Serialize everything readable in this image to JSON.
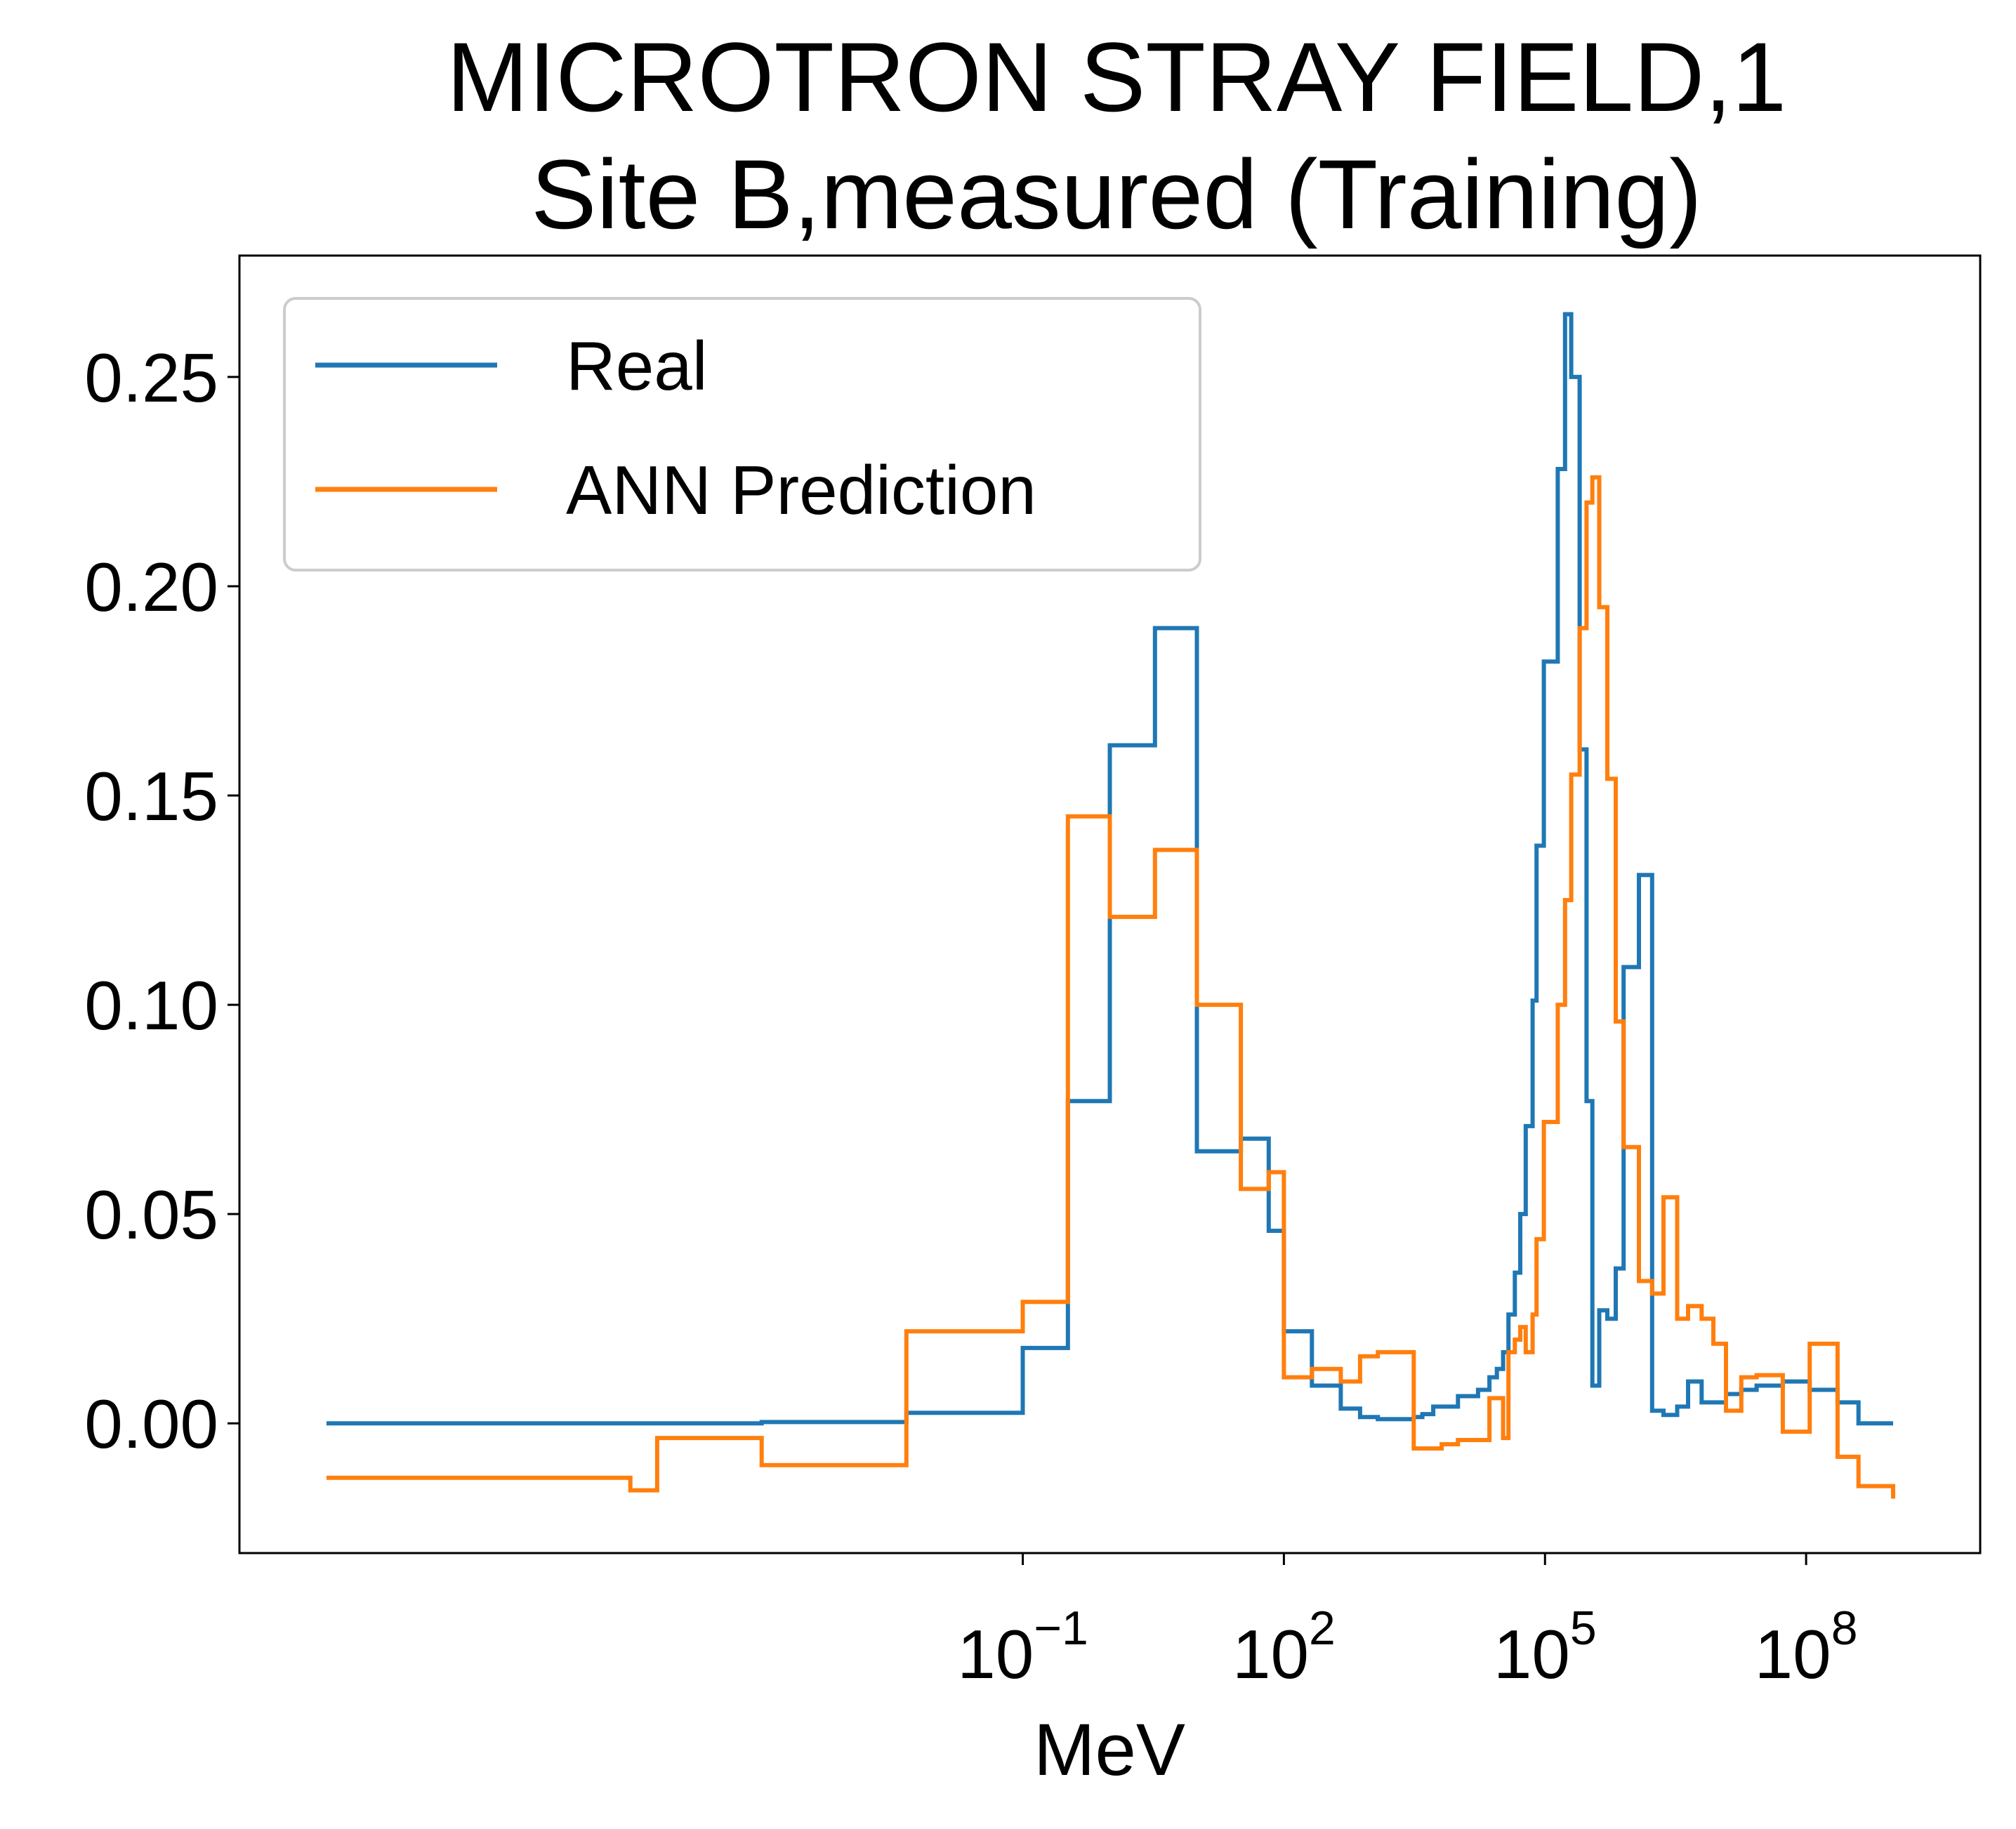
{
  "chart_data": {
    "type": "line",
    "title": "MICROTRON STRAY FIELD,1",
    "subtitle": "Site B,measured (Training)",
    "xlabel": "MeV",
    "ylabel": "",
    "x_scale": "log",
    "xlim": [
      1e-10,
      10000000000.0
    ],
    "ylim": [
      -0.031,
      0.279
    ],
    "x_ticks": [
      {
        "value": 0.1,
        "base": "10",
        "exp": "−1"
      },
      {
        "value": 100,
        "base": "10",
        "exp": "2"
      },
      {
        "value": 100000,
        "base": "10",
        "exp": "5"
      },
      {
        "value": 100000000,
        "base": "10",
        "exp": "8"
      }
    ],
    "y_ticks": [
      "0.00",
      "0.05",
      "0.10",
      "0.15",
      "0.20",
      "0.25"
    ],
    "y_tick_values": [
      0,
      0.05,
      0.1,
      0.15,
      0.2,
      0.25
    ],
    "grid": false,
    "legend_position": "top-left",
    "colors": {
      "real": "#1f77b4",
      "prediction": "#ff7f0e",
      "legend_border": "#cccccc"
    },
    "series": [
      {
        "name": "Real",
        "color": "#1f77b4",
        "step": "post",
        "x": [
          1e-09,
          3.1e-06,
          6.3e-06,
          0.0001,
          0.0046,
          0.1,
          0.33,
          1,
          3.3,
          10,
          32,
          67,
          100,
          210,
          450,
          750,
          1200,
          2100,
          3100,
          3900,
          5200,
          6500,
          10000,
          17000,
          23000,
          28000,
          33000,
          38000,
          45000,
          52000,
          60000,
          72000,
          80000,
          97000,
          140000,
          170000,
          200000,
          250000,
          300000,
          350000,
          420000,
          520000,
          650000,
          800000,
          1200000,
          1700000,
          2300000,
          3300000,
          4400000,
          6300000,
          8600000,
          12000000,
          18000000,
          27000000,
          54000000,
          110000000,
          230000000,
          400000000,
          1000000000
        ],
        "values": [
          0.0,
          0.0,
          0.0,
          0.0003,
          0.0025,
          0.018,
          0.077,
          0.162,
          0.19,
          0.065,
          0.068,
          0.046,
          0.022,
          0.009,
          0.0035,
          0.0015,
          0.001,
          0.001,
          0.0015,
          0.0022,
          0.004,
          0.004,
          0.0065,
          0.008,
          0.011,
          0.013,
          0.017,
          0.026,
          0.036,
          0.05,
          0.071,
          0.101,
          0.138,
          0.182,
          0.228,
          0.265,
          0.25,
          0.161,
          0.077,
          0.009,
          0.027,
          0.025,
          0.037,
          0.109,
          0.131,
          0.003,
          0.002,
          0.004,
          0.01,
          0.005,
          0.005,
          0.007,
          0.008,
          0.009,
          0.01,
          0.008,
          0.005,
          0.0,
          0.0
        ]
      },
      {
        "name": "ANN Prediction",
        "color": "#ff7f0e",
        "step": "post",
        "x": [
          1e-09,
          3.1e-06,
          6.3e-06,
          0.0001,
          0.0046,
          0.1,
          0.33,
          1,
          3.3,
          10,
          32,
          67,
          100,
          210,
          450,
          750,
          1200,
          2100,
          3100,
          3900,
          5200,
          6500,
          10000,
          17000,
          23000,
          28000,
          33000,
          38000,
          45000,
          52000,
          60000,
          72000,
          80000,
          97000,
          140000,
          170000,
          200000,
          250000,
          300000,
          350000,
          420000,
          520000,
          650000,
          800000,
          1200000,
          1700000,
          2300000,
          3300000,
          4400000,
          6300000,
          8600000,
          12000000,
          18000000,
          27000000,
          54000000,
          110000000,
          230000000,
          400000000,
          1000000000
        ],
        "values": [
          -0.013,
          -0.016,
          -0.0035,
          -0.01,
          0.022,
          0.029,
          0.145,
          0.121,
          0.137,
          0.1,
          0.056,
          0.06,
          0.011,
          0.013,
          0.01,
          0.016,
          0.017,
          0.017,
          -0.006,
          -0.006,
          -0.006,
          -0.005,
          -0.004,
          -0.004,
          0.006,
          0.006,
          -0.0035,
          0.017,
          0.02,
          0.023,
          0.017,
          0.026,
          0.044,
          0.072,
          0.1,
          0.125,
          0.155,
          0.19,
          0.22,
          0.226,
          0.195,
          0.154,
          0.096,
          0.066,
          0.034,
          0.031,
          0.054,
          0.025,
          0.028,
          0.025,
          0.019,
          0.003,
          0.011,
          0.0115,
          -0.002,
          0.019,
          -0.008,
          -0.015,
          -0.018
        ]
      }
    ]
  }
}
